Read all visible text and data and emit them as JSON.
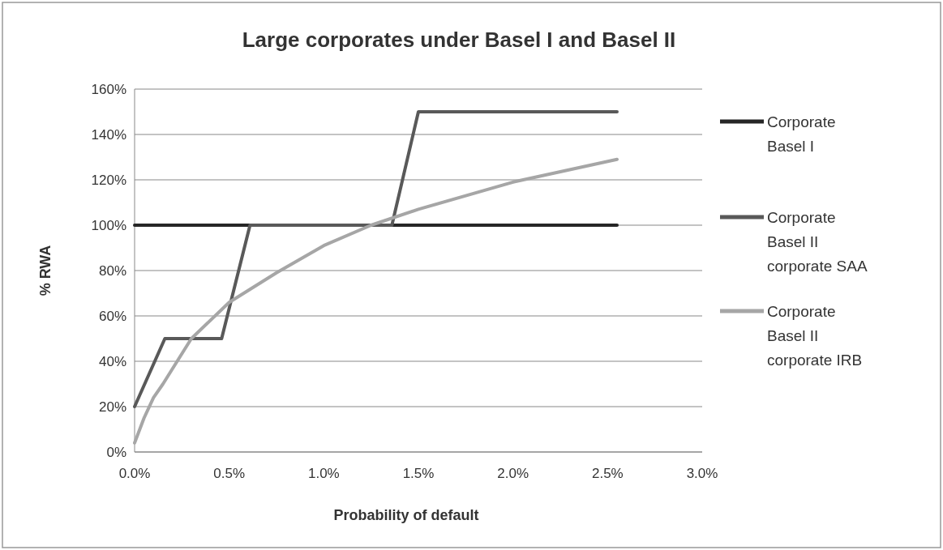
{
  "chart_data": {
    "type": "line",
    "title": "Large corporates under Basel I and Basel II",
    "xlabel": "Probability of default",
    "ylabel": "% RWA",
    "xlim": [
      0,
      3
    ],
    "xticks": [
      {
        "value": 0,
        "label": "0.0%"
      },
      {
        "value": 0.5,
        "label": "0.5%"
      },
      {
        "value": 1,
        "label": "1.0%"
      },
      {
        "value": 1.5,
        "label": "1.5%"
      },
      {
        "value": 2,
        "label": "2.0%"
      },
      {
        "value": 2.5,
        "label": "2.5%"
      },
      {
        "value": 3,
        "label": "3.0%"
      }
    ],
    "ylim": [
      0,
      160
    ],
    "yticks": [
      {
        "value": 0,
        "label": "0%"
      },
      {
        "value": 20,
        "label": "20%"
      },
      {
        "value": 40,
        "label": "40%"
      },
      {
        "value": 60,
        "label": "60%"
      },
      {
        "value": 80,
        "label": "80%"
      },
      {
        "value": 100,
        "label": "100%"
      },
      {
        "value": 120,
        "label": "120%"
      },
      {
        "value": 140,
        "label": "140%"
      },
      {
        "value": 160,
        "label": "160%"
      }
    ],
    "grid": "y",
    "legend": "right",
    "marker": "none",
    "series": [
      {
        "name": "Corporate Basel I",
        "color": "#262626",
        "x": [
          0,
          2.55
        ],
        "values": [
          100,
          100
        ]
      },
      {
        "name": "Corporate Basel II corporate SAA",
        "color": "#595959",
        "x": [
          0,
          0.16,
          0.46,
          0.61,
          1.36,
          1.5,
          2.55
        ],
        "values": [
          20,
          50,
          50,
          100,
          100,
          150,
          150
        ]
      },
      {
        "name": "Corporate Basel II corporate IRB",
        "color": "#a6a6a6",
        "x": [
          0,
          0.05,
          0.1,
          0.15,
          0.3,
          0.5,
          0.75,
          1,
          1.25,
          1.5,
          2,
          2.55
        ],
        "values": [
          4,
          15,
          24,
          30,
          50,
          66,
          79,
          91,
          100,
          107,
          119,
          129
        ]
      }
    ]
  }
}
